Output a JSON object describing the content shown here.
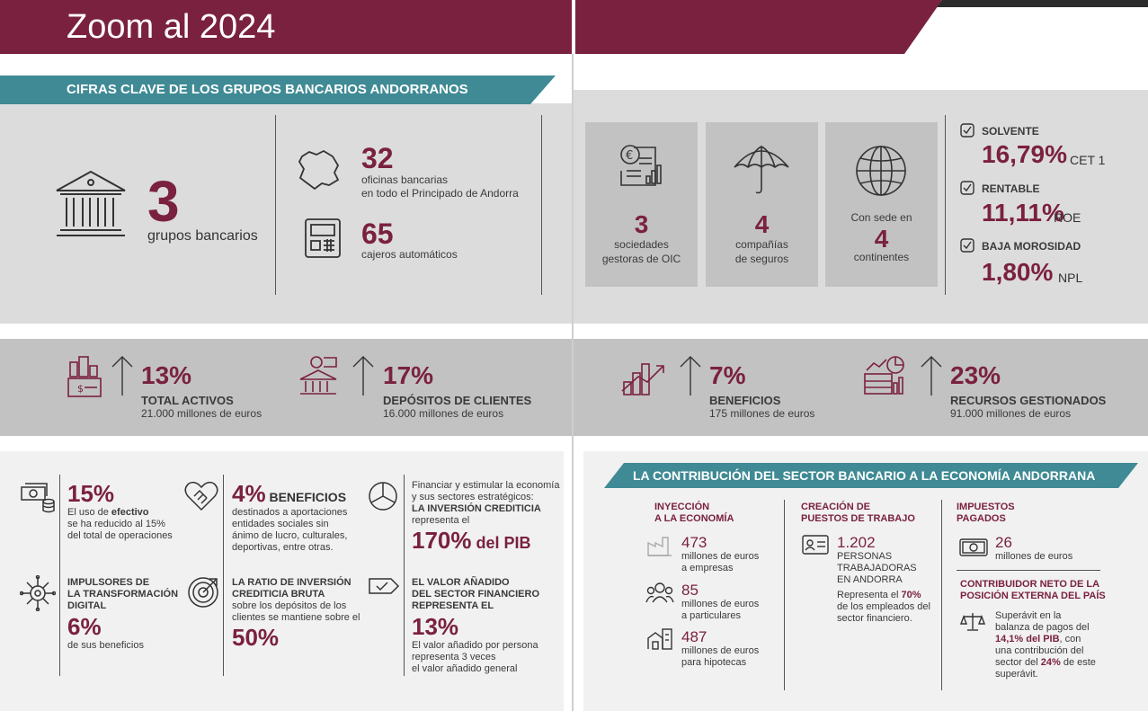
{
  "header": {
    "title": "Zoom al 2024"
  },
  "colors": {
    "maroon": "#7a2140",
    "teal": "#3f8a94",
    "panel": "#dcdcdc",
    "dark_panel": "#c2c2c2"
  },
  "key_figures": {
    "banner": "CIFRAS CLAVE DE LOS GRUPOS BANCARIOS ANDORRANOS",
    "groups_value": "3",
    "groups_label": "grupos bancarios",
    "offices_value": "32",
    "offices_label_1": "oficinas bancarias",
    "offices_label_2": "en todo el Principado de Andorra",
    "atm_value": "65",
    "atm_label": "cajeros automáticos",
    "cards": [
      {
        "value": "3",
        "label_1": "sociedades",
        "label_2": "gestoras de OIC"
      },
      {
        "value": "4",
        "label_1": "compañías",
        "label_2": "de seguros"
      },
      {
        "pre": "Con sede en",
        "value": "4",
        "label_1": "continentes"
      }
    ],
    "ratios": [
      {
        "title": "SOLVENTE",
        "value": "16,79%",
        "unit": "CET 1"
      },
      {
        "title": "RENTABLE",
        "value": "11,11%",
        "unit": "ROE"
      },
      {
        "title": "BAJA MOROSIDAD",
        "value": "1,80%",
        "unit": "NPL"
      }
    ]
  },
  "growth": [
    {
      "value": "13%",
      "title": "TOTAL ACTIVOS",
      "sub": "21.000 millones de euros"
    },
    {
      "value": "17%",
      "title": "DEPÓSITOS DE CLIENTES",
      "sub": "16.000 millones de euros"
    },
    {
      "value": "7%",
      "title": "BENEFICIOS",
      "sub": "175 millones de euros"
    },
    {
      "value": "23%",
      "title": "RECURSOS GESTIONADOS",
      "sub": "91.000 millones de euros"
    }
  ],
  "facts": {
    "cash": {
      "value": "15%",
      "l1_pre": "El uso de ",
      "l1_bold": "efectivo",
      "l2": "se ha reducido al 15%",
      "l3": "del total de operaciones"
    },
    "benefits": {
      "value": "4%",
      "value_suffix": " BENEFICIOS",
      "l1": "destinados a aportaciones",
      "l2": "entidades sociales sin",
      "l3": "ánimo de lucro, culturales,",
      "l4": "deportivas, entre otras."
    },
    "credit": {
      "l1": "Financiar y estimular la economía",
      "l2": "y sus sectores estratégicos:",
      "l3_bold": "LA INVERSIÓN CREDITICIA",
      "l4": "representa el",
      "value": "170%",
      "value_suffix": " del PIB"
    },
    "digital": {
      "t1": "IMPULSORES DE",
      "t2": "LA TRANSFORMACIÓN",
      "t3": "DIGITAL",
      "value": "6%",
      "l1": "de sus beneficios"
    },
    "ratio": {
      "t1": "LA RATIO DE INVERSIÓN",
      "t2": "CREDITICIA BRUTA",
      "l1": "sobre los depósitos de los",
      "l2": "clientes se mantiene sobre el",
      "value": "50%"
    },
    "added": {
      "t1": "EL VALOR AÑADIDO",
      "t2": "DEL SECTOR FINANCIERO",
      "t3": "REPRESENTA EL",
      "value": "13%",
      "l1": "El valor añadido por persona",
      "l2": "representa 3 veces",
      "l3": "el valor añadido general"
    }
  },
  "contribution": {
    "banner": "LA CONTRIBUCIÓN DEL SECTOR BANCARIO A LA ECONOMÍA ANDORRANA",
    "injection": {
      "t1": "INYECCIÓN",
      "t2": "A LA ECONOMÍA",
      "items": [
        {
          "value": "473",
          "l1": "millones de euros",
          "l2": "a empresas"
        },
        {
          "value": "85",
          "l1": "millones de euros",
          "l2": "a particulares"
        },
        {
          "value": "487",
          "l1": "millones de euros",
          "l2": "para hipotecas"
        }
      ]
    },
    "jobs": {
      "t1": "CREACIÓN DE",
      "t2": "PUESTOS DE TRABAJO",
      "value": "1.202",
      "l1": "PERSONAS",
      "l2": "TRABAJADORAS",
      "l3": "EN ANDORRA",
      "d1_pre": "Representa el ",
      "d1_bold": "70%",
      "d2": "de los empleados del",
      "d3": "sector financiero."
    },
    "taxes": {
      "t1": "IMPUESTOS",
      "t2": "PAGADOS",
      "value": "26",
      "l1": "millones de euros"
    },
    "net": {
      "t1": "CONTRIBUIDOR NETO DE LA",
      "t2": "POSICIÓN EXTERNA DEL PAÍS",
      "l1": "Superávit en la",
      "l2": "balanza de pagos del",
      "l3_bold": "14,1% del PIB",
      "l3_rest": ", con",
      "l4": "una contribución del",
      "l5_pre": "sector del ",
      "l5_bold": "24%",
      "l5_rest": " de este",
      "l6": "superávit."
    }
  }
}
